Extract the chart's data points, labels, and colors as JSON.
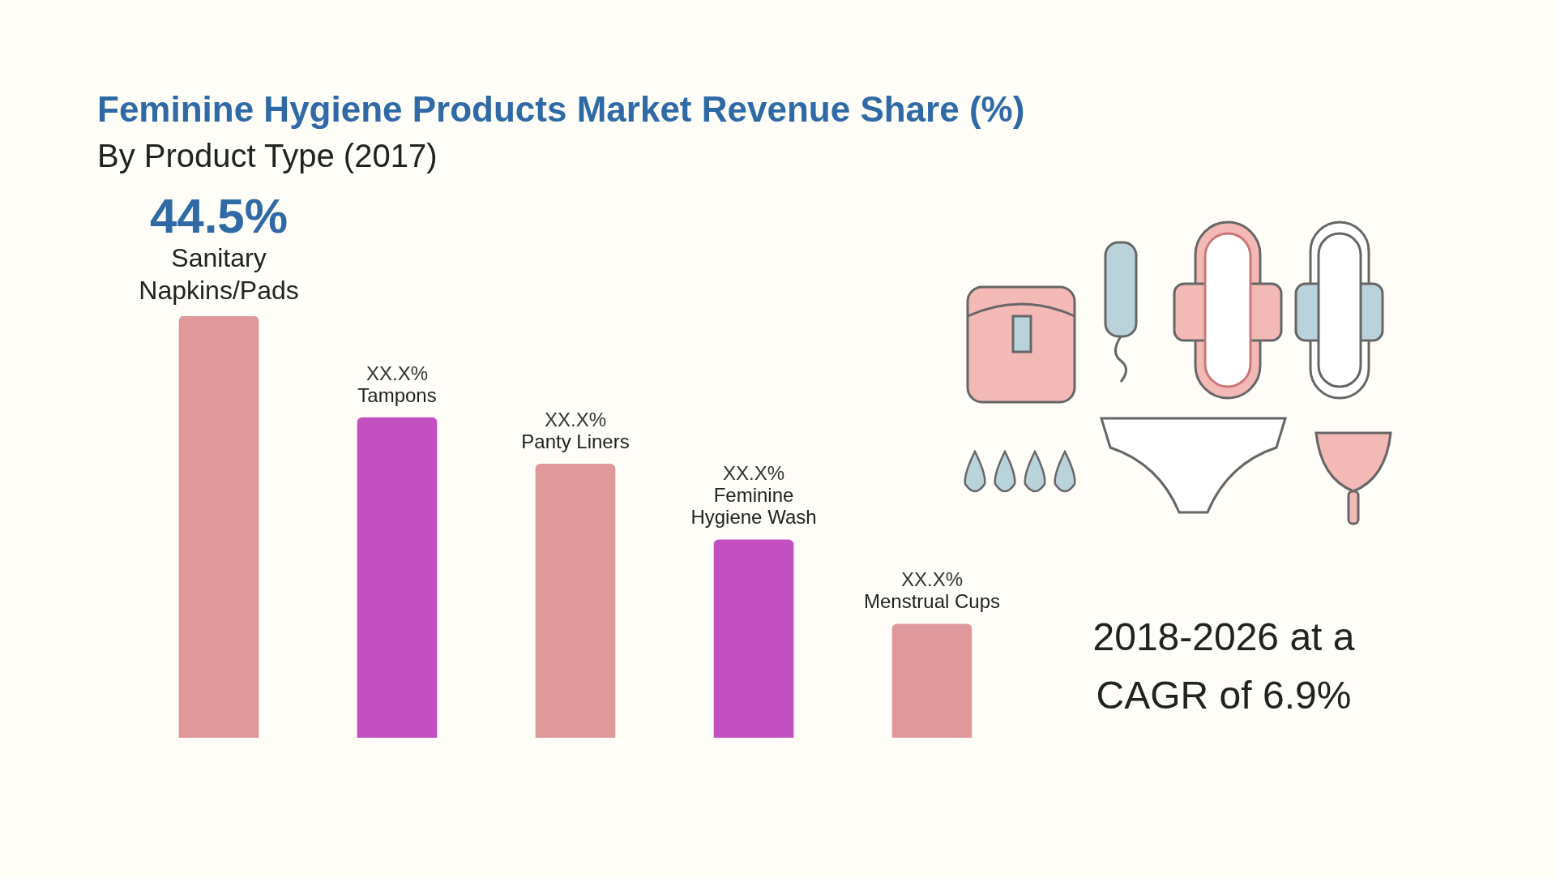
{
  "chart_data": {
    "type": "bar",
    "title": "Feminine Hygiene Products Market Revenue Share (%)",
    "subtitle": "By Product Type (2017)",
    "tick_labels": false,
    "categories": [
      "Sanitary Napkins/Pads",
      "Tampons",
      "Panty Liners",
      "Feminine Hygiene Wash",
      "Menstrual Cups"
    ],
    "values": [
      44.5,
      33.8,
      28.9,
      20.9,
      12
    ],
    "colors": [
      "#e0999a",
      "#c350c0",
      "#e0999a",
      "#c350c0",
      "#e0999a"
    ],
    "value_labels": [
      "44.5%",
      "XX.X%",
      "XX.X%",
      "XX.X%",
      "XX.X%"
    ],
    "annotations": [
      "2018-2026 at a CAGR of 6.9%"
    ],
    "legend": false
  }
}
